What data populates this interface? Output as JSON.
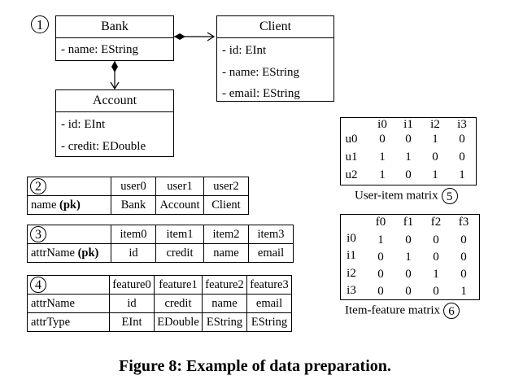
{
  "markers": {
    "m1": "1",
    "m2": "2",
    "m3": "3",
    "m4": "4",
    "m5": "5",
    "m6": "6"
  },
  "uml": {
    "bank": {
      "name": "Bank",
      "attrs": [
        "- name: EString"
      ]
    },
    "client": {
      "name": "Client",
      "attrs": [
        "- id: EInt",
        "- name: EString",
        "- email: EString"
      ]
    },
    "account": {
      "name": "Account",
      "attrs": [
        "- id: EInt",
        "- credit: EDouble"
      ]
    }
  },
  "user_table": {
    "headers": [
      "user0",
      "user1",
      "user2"
    ],
    "row_label_prefix": "name ",
    "row_label_pk": "(pk)",
    "values": [
      "Bank",
      "Account",
      "Client"
    ]
  },
  "item_table": {
    "headers": [
      "item0",
      "item1",
      "item2",
      "item3"
    ],
    "row_label_prefix": "attrName ",
    "row_label_pk": "(pk)",
    "values": [
      "id",
      "credit",
      "name",
      "email"
    ]
  },
  "feature_table": {
    "headers": [
      "feature0",
      "feature1",
      "feature2",
      "feature3"
    ],
    "rows": [
      {
        "label": "attrName",
        "values": [
          "id",
          "credit",
          "name",
          "email"
        ]
      },
      {
        "label": "attrType",
        "values": [
          "EInt",
          "EDouble",
          "EString",
          "EString"
        ]
      }
    ]
  },
  "user_item_matrix": {
    "cols": [
      "i0",
      "i1",
      "i2",
      "i3"
    ],
    "rows": [
      "u0",
      "u1",
      "u2"
    ],
    "values": [
      [
        0,
        0,
        1,
        0
      ],
      [
        1,
        1,
        0,
        0
      ],
      [
        1,
        0,
        1,
        1
      ]
    ],
    "caption": "User-item matrix"
  },
  "item_feature_matrix": {
    "cols": [
      "f0",
      "f1",
      "f2",
      "f3"
    ],
    "rows": [
      "i0",
      "i1",
      "i2",
      "i3"
    ],
    "values": [
      [
        1,
        0,
        0,
        0
      ],
      [
        0,
        1,
        0,
        0
      ],
      [
        0,
        0,
        1,
        0
      ],
      [
        0,
        0,
        0,
        1
      ]
    ],
    "caption": "Item-feature matrix"
  },
  "figure_caption": "Figure 8: Example of data preparation."
}
